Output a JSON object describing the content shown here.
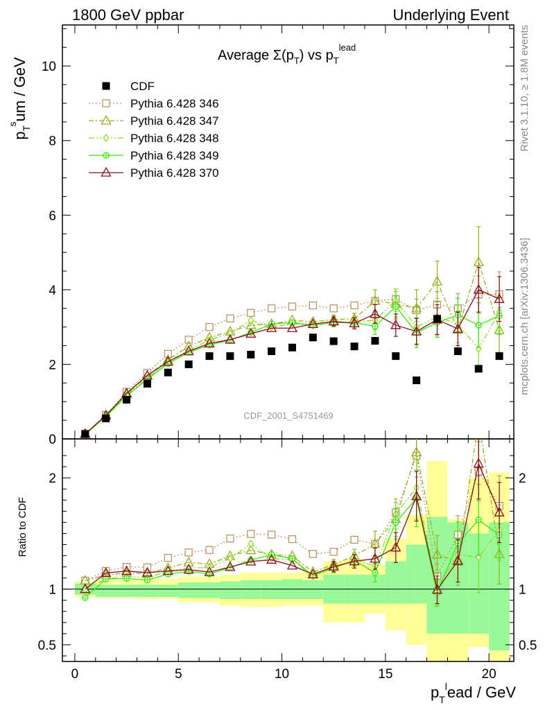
{
  "header": {
    "left": "1800 GeV ppbar",
    "right": "Underlying Event",
    "title": "Average Σ(p_T) vs p_T^lead",
    "title_main": "Average Σ(p",
    "title_sub1": "T",
    "title_mid": ") vs p",
    "title_sub2": "T",
    "title_sup": "lead",
    "watermark": "CDF_2001_S4751469",
    "side_right_top": "Rivet 3.1.10, ≥ 1.8M events",
    "side_right_bottom": "mcplots.cern.ch [arXiv:1306.3436]"
  },
  "axes": {
    "ylabel_main": "p_T^sum / GeV",
    "ylabel_main_p": "p",
    "ylabel_main_sub": "T",
    "ylabel_main_sup": "s",
    "ylabel_main_rest": "um / GeV",
    "ylabel_ratio": "Ratio to CDF",
    "xlabel": "p_T^lead / GeV",
    "xlabel_p": "p",
    "xlabel_sub": "T",
    "xlabel_sup": "l",
    "xlabel_rest": "ead / GeV",
    "xlim": [
      -0.6,
      21.2
    ],
    "ylim_main": [
      0,
      11.1
    ],
    "ylim_ratio": [
      0.35,
      2.35
    ],
    "xticks": [
      "0",
      "5",
      "10",
      "15",
      "20"
    ],
    "yticks_main": [
      "0",
      "2",
      "4",
      "6",
      "8",
      "10"
    ],
    "yticks_ratio": [
      "0.5",
      "1",
      "2"
    ]
  },
  "colors": {
    "cdf": "#000000",
    "p346": "#b8956a",
    "p347": "#9aad1e",
    "p348": "#88dd22",
    "p349": "#33ee00",
    "p370": "#8c0a18",
    "band_inner": "#99f999",
    "band_outer": "#ffff99"
  },
  "chart_data": {
    "type": "scatter",
    "x": [
      0.5,
      1.5,
      2.5,
      3.5,
      4.5,
      5.5,
      6.5,
      7.5,
      8.5,
      9.5,
      10.5,
      11.5,
      12.5,
      13.5,
      14.5,
      15.5,
      16.5,
      17.5,
      18.5,
      19.5,
      20.5
    ],
    "legend": [
      "CDF",
      "Pythia 6.428 346",
      "Pythia 6.428 347",
      "Pythia 6.428 348",
      "Pythia 6.428 349",
      "Pythia 6.428 370"
    ],
    "series": [
      {
        "name": "CDF",
        "key": "cdf",
        "marker": "square-filled",
        "values": [
          0.13,
          0.55,
          1.05,
          1.48,
          1.78,
          2.0,
          2.22,
          2.22,
          2.26,
          2.35,
          2.45,
          2.72,
          2.62,
          2.48,
          2.63,
          2.22,
          1.57,
          3.22,
          2.35,
          1.88,
          2.22
        ]
      },
      {
        "name": "Pythia 6.428 346",
        "key": "p346",
        "marker": "square-open",
        "dash": "2,3",
        "values": [
          0.14,
          0.64,
          1.26,
          1.77,
          2.28,
          2.66,
          3.0,
          3.23,
          3.38,
          3.5,
          3.55,
          3.58,
          3.5,
          3.58,
          3.7,
          3.75,
          3.45,
          3.6,
          3.5,
          3.87,
          3.88
        ],
        "errors": [
          0,
          0,
          0,
          0,
          0,
          0,
          0,
          0,
          0,
          0,
          0,
          0,
          0,
          0,
          0,
          0.2,
          0.3,
          0.35,
          0.4,
          0.5,
          0.6
        ]
      },
      {
        "name": "Pythia 6.428 347",
        "key": "p347",
        "marker": "triangle-open",
        "dash": "7,3,2,3",
        "values": [
          0.14,
          0.62,
          1.2,
          1.69,
          2.12,
          2.48,
          2.72,
          2.88,
          3.05,
          3.08,
          3.18,
          3.14,
          3.2,
          3.22,
          3.7,
          3.62,
          3.5,
          4.22,
          2.93,
          4.74,
          2.92
        ],
        "errors": [
          0,
          0,
          0,
          0,
          0,
          0,
          0,
          0,
          0,
          0,
          0,
          0,
          0.12,
          0.15,
          0.3,
          0.4,
          0.5,
          0.55,
          0.5,
          0.95,
          0.6
        ]
      },
      {
        "name": "Pythia 6.428 348",
        "key": "p348",
        "marker": "diamond-open",
        "dash": "8,3,2,3,2,3",
        "values": [
          0.13,
          0.6,
          1.17,
          1.63,
          2.07,
          2.38,
          2.65,
          2.83,
          3.18,
          3.0,
          3.08,
          3.04,
          3.12,
          3.14,
          3.18,
          3.72,
          3.0,
          3.27,
          3.08,
          2.42,
          3.4
        ],
        "errors": [
          0,
          0,
          0,
          0,
          0,
          0,
          0,
          0,
          0,
          0,
          0,
          0,
          0.12,
          0.15,
          0.25,
          0.3,
          0.45,
          0.5,
          0.5,
          0.6,
          0.5
        ]
      },
      {
        "name": "Pythia 6.428 349",
        "key": "p349",
        "marker": "circle-cross",
        "dash": "",
        "values": [
          0.12,
          0.6,
          1.15,
          1.6,
          2.02,
          2.32,
          2.52,
          2.65,
          2.85,
          3.08,
          3.12,
          3.05,
          3.12,
          3.12,
          3.02,
          3.55,
          2.85,
          3.12,
          3.32,
          3.05,
          3.3
        ],
        "errors": [
          0,
          0,
          0,
          0,
          0,
          0,
          0,
          0,
          0,
          0,
          0,
          0,
          0.1,
          0.12,
          0.22,
          0.28,
          0.4,
          0.4,
          0.45,
          0.6,
          0.5
        ]
      },
      {
        "name": "Pythia 6.428 370",
        "key": "p370",
        "marker": "triangle-open",
        "dash": "",
        "values": [
          0.13,
          0.63,
          1.22,
          1.7,
          2.07,
          2.35,
          2.56,
          2.66,
          2.82,
          2.97,
          2.97,
          3.08,
          3.15,
          3.1,
          3.35,
          3.05,
          2.88,
          3.2,
          2.95,
          4.0,
          3.75
        ],
        "errors": [
          0,
          0,
          0,
          0,
          0,
          0,
          0,
          0,
          0,
          0,
          0,
          0,
          0.12,
          0.15,
          0.25,
          0.3,
          0.35,
          0.4,
          0.45,
          0.6,
          0.6
        ]
      }
    ],
    "ratio_band": {
      "inner_lo": [
        0.95,
        0.93,
        0.93,
        0.93,
        0.93,
        0.92,
        0.92,
        0.91,
        0.91,
        0.91,
        0.91,
        0.91,
        0.87,
        0.87,
        0.87,
        0.87,
        0.87,
        0.6,
        0.6,
        0.6,
        0.45
      ],
      "inner_hi": [
        1.05,
        1.04,
        1.04,
        1.04,
        1.04,
        1.06,
        1.06,
        1.07,
        1.08,
        1.08,
        1.09,
        1.08,
        1.13,
        1.13,
        1.13,
        1.25,
        1.4,
        1.65,
        1.6,
        1.5,
        1.6
      ],
      "outer_lo": [
        0.93,
        0.92,
        0.92,
        0.91,
        0.91,
        0.88,
        0.88,
        0.85,
        0.84,
        0.84,
        0.85,
        0.85,
        0.7,
        0.7,
        0.78,
        0.63,
        0.5,
        0.35,
        0.35,
        0.48,
        0.35
      ],
      "outer_hi": [
        1.07,
        1.08,
        1.08,
        1.09,
        1.09,
        1.11,
        1.11,
        1.13,
        1.15,
        1.15,
        1.15,
        1.16,
        1.25,
        1.27,
        1.22,
        1.45,
        1.67,
        2.15,
        1.63,
        2.0,
        2.05
      ]
    }
  }
}
